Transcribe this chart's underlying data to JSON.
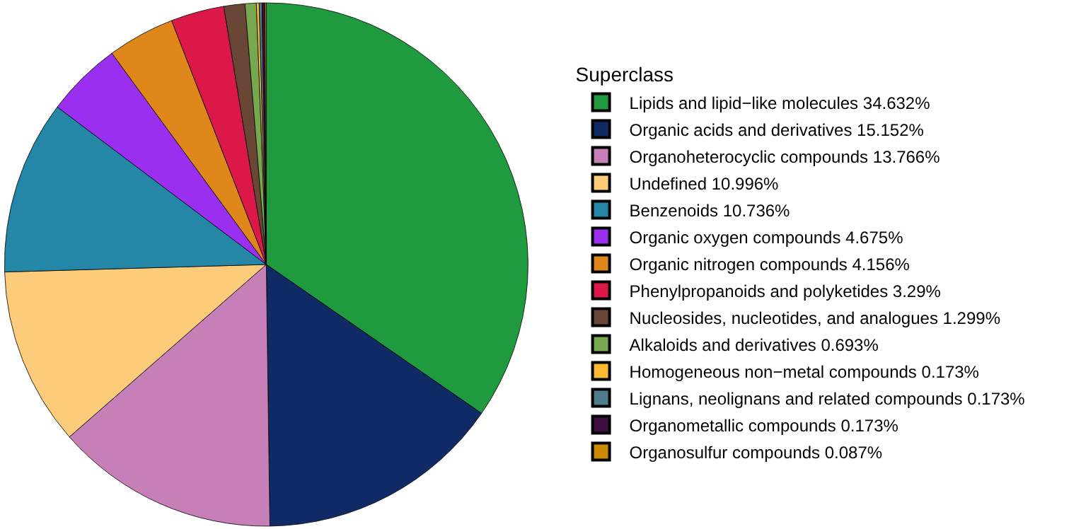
{
  "chart_data": {
    "type": "pie",
    "legend_title": "Superclass",
    "legend": "right",
    "categories": [
      "Lipids and lipid−like molecules 34.632%",
      "Organic acids and derivatives 15.152%",
      "Organoheterocyclic compounds 13.766%",
      "Undefined 10.996%",
      "Benzenoids 10.736%",
      "Organic oxygen compounds 4.675%",
      "Organic nitrogen compounds 4.156%",
      "Phenylpropanoids and polyketides 3.29%",
      "Nucleosides, nucleotides, and analogues 1.299%",
      "Alkaloids and derivatives 0.693%",
      "Homogeneous non−metal compounds 0.173%",
      "Lignans, neolignans and related compounds 0.173%",
      "Organometallic compounds 0.173%",
      "Organosulfur compounds 0.087%"
    ],
    "values": [
      34.632,
      15.152,
      13.766,
      10.996,
      10.736,
      4.675,
      4.156,
      3.29,
      1.299,
      0.693,
      0.173,
      0.173,
      0.173,
      0.087
    ],
    "colors": [
      "#1f9a3f",
      "#102a66",
      "#c67fb7",
      "#fdcc7a",
      "#2587a8",
      "#9b2ff0",
      "#e0871c",
      "#dc1848",
      "#6a4637",
      "#77a74e",
      "#f9b933",
      "#4f7c8c",
      "#3d0e3f",
      "#cc8a00"
    ]
  }
}
